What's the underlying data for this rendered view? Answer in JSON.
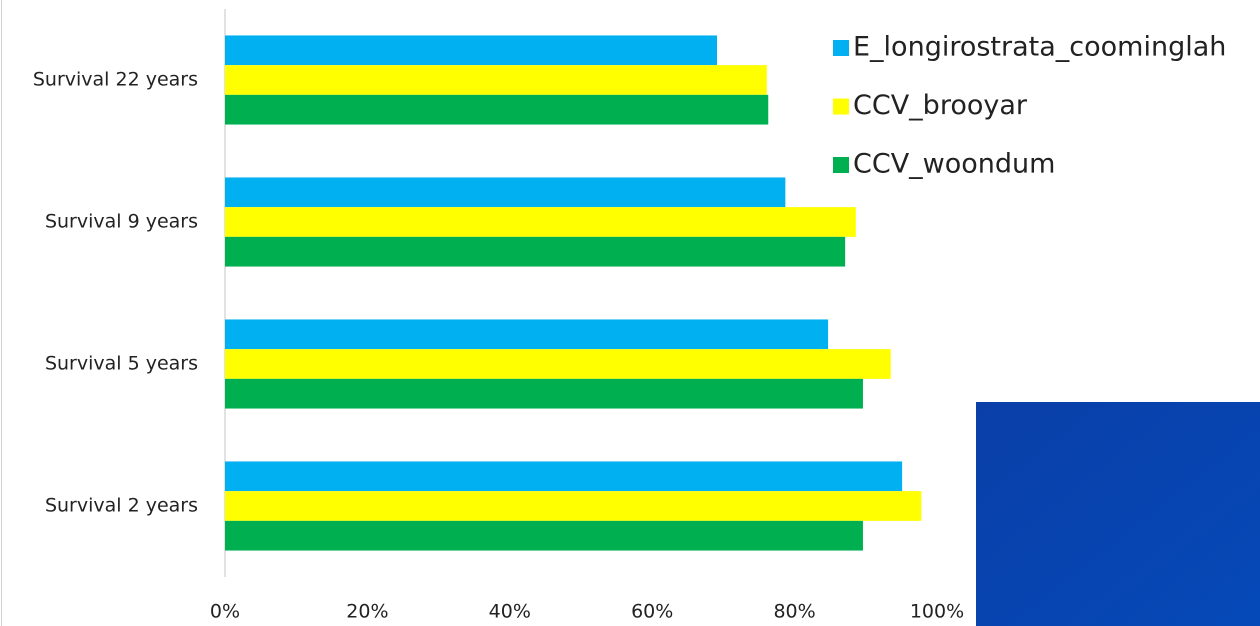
{
  "chart_data": {
    "type": "hbar",
    "categories": [
      "Survival 2 years",
      "Survival 5 years",
      "Survival 9 years",
      "Survival 22 years"
    ],
    "series": [
      {
        "name": "E_longirostrata_coominglah",
        "color": "#00b0f0",
        "values": [
          95.1,
          84.7,
          78.7,
          69.1
        ]
      },
      {
        "name": "CCV_brooyar",
        "color": "#ffff00",
        "values": [
          97.8,
          93.5,
          88.6,
          76.1
        ]
      },
      {
        "name": "CCV_woondum",
        "color": "#00b050",
        "values": [
          89.6,
          89.6,
          87.1,
          76.3
        ]
      }
    ],
    "xlim": [
      0,
      100
    ],
    "xticks": [
      {
        "value": 0,
        "label": "0%"
      },
      {
        "value": 20,
        "label": "20%"
      },
      {
        "value": 40,
        "label": "40%"
      },
      {
        "value": 60,
        "label": "60%"
      },
      {
        "value": 80,
        "label": "80%"
      },
      {
        "value": 100,
        "label": "100%"
      }
    ],
    "grid": false
  }
}
